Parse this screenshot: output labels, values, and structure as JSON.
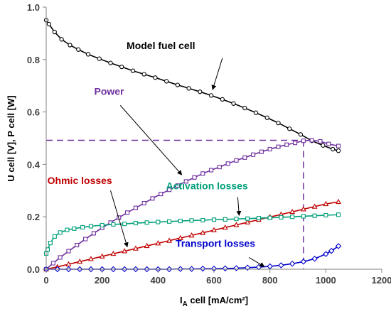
{
  "chart_data": {
    "type": "line",
    "xlabel_main": "I",
    "xlabel_sub": "A",
    "xlabel_rest": " cell [mA/cm²]",
    "ylabel": "U cell [V], P cell [W]",
    "xlim": [
      0,
      1200
    ],
    "ylim": [
      0,
      1.0
    ],
    "x_ticks": [
      "0",
      "200",
      "400",
      "600",
      "800",
      "1000",
      "1200"
    ],
    "y_ticks": [
      "0.0",
      "0.2",
      "0.4",
      "0.6",
      "0.8",
      "1.0"
    ],
    "grid": false,
    "series": [
      {
        "name": "Model fuel cell",
        "color": "#000000",
        "marker": "circle",
        "x": [
          0,
          10,
          30,
          55,
          85,
          115,
          150,
          190,
          230,
          270,
          310,
          350,
          390,
          430,
          470,
          510,
          550,
          590,
          630,
          670,
          710,
          750,
          790,
          830,
          870,
          910,
          950,
          990,
          1025,
          1045
        ],
        "y": [
          0.95,
          0.935,
          0.905,
          0.877,
          0.855,
          0.838,
          0.82,
          0.803,
          0.787,
          0.772,
          0.757,
          0.744,
          0.731,
          0.717,
          0.703,
          0.69,
          0.677,
          0.663,
          0.648,
          0.632,
          0.615,
          0.597,
          0.578,
          0.558,
          0.536,
          0.514,
          0.49,
          0.472,
          0.458,
          0.452
        ]
      },
      {
        "name": "Power",
        "color": "#7030A0",
        "marker": "square",
        "x": [
          0,
          25,
          50,
          80,
          110,
          140,
          170,
          200,
          230,
          260,
          290,
          320,
          350,
          380,
          410,
          440,
          470,
          500,
          530,
          560,
          590,
          620,
          650,
          680,
          710,
          740,
          770,
          800,
          830,
          860,
          890,
          920,
          950,
          980,
          1010,
          1045
        ],
        "y": [
          0.0,
          0.023,
          0.045,
          0.069,
          0.092,
          0.115,
          0.137,
          0.158,
          0.178,
          0.197,
          0.216,
          0.234,
          0.252,
          0.27,
          0.287,
          0.303,
          0.319,
          0.335,
          0.35,
          0.365,
          0.378,
          0.39,
          0.403,
          0.415,
          0.426,
          0.437,
          0.448,
          0.458,
          0.467,
          0.475,
          0.482,
          0.49,
          0.492,
          0.488,
          0.478,
          0.47
        ]
      },
      {
        "name": "Ohmic losses",
        "color": "#C00000",
        "marker": "triangle",
        "x": [
          0,
          40,
          80,
          120,
          160,
          200,
          240,
          280,
          320,
          360,
          400,
          440,
          480,
          520,
          560,
          600,
          640,
          680,
          720,
          760,
          800,
          840,
          880,
          920,
          960,
          1000,
          1045
        ],
        "y": [
          0.0,
          0.009,
          0.019,
          0.029,
          0.039,
          0.049,
          0.059,
          0.069,
          0.079,
          0.089,
          0.099,
          0.109,
          0.119,
          0.129,
          0.139,
          0.149,
          0.159,
          0.169,
          0.179,
          0.189,
          0.199,
          0.209,
          0.219,
          0.229,
          0.239,
          0.249,
          0.257
        ]
      },
      {
        "name": "Activation losses",
        "color": "#00A07A",
        "marker": "square",
        "x": [
          0,
          5,
          15,
          30,
          50,
          75,
          100,
          130,
          160,
          200,
          240,
          280,
          320,
          360,
          400,
          440,
          480,
          520,
          560,
          600,
          640,
          680,
          720,
          760,
          800,
          840,
          880,
          920,
          960,
          1000,
          1045
        ],
        "y": [
          0.06,
          0.075,
          0.1,
          0.125,
          0.14,
          0.15,
          0.155,
          0.16,
          0.164,
          0.168,
          0.171,
          0.173,
          0.176,
          0.178,
          0.18,
          0.182,
          0.184,
          0.186,
          0.187,
          0.189,
          0.19,
          0.192,
          0.193,
          0.195,
          0.196,
          0.198,
          0.2,
          0.202,
          0.204,
          0.206,
          0.208
        ]
      },
      {
        "name": "Transport losses",
        "color": "#0000CC",
        "marker": "diamond",
        "x": [
          0,
          40,
          80,
          120,
          160,
          200,
          240,
          280,
          320,
          360,
          400,
          440,
          480,
          520,
          560,
          600,
          640,
          680,
          720,
          760,
          800,
          840,
          880,
          920,
          960,
          1000,
          1020,
          1045
        ],
        "y": [
          0.0,
          0.0,
          0.0,
          0.0,
          0.0,
          0.0,
          0.0,
          0.0,
          0.0,
          0.0,
          0.0,
          0.0,
          0.001,
          0.001,
          0.002,
          0.002,
          0.003,
          0.004,
          0.006,
          0.008,
          0.011,
          0.015,
          0.021,
          0.029,
          0.04,
          0.058,
          0.07,
          0.088
        ]
      }
    ],
    "reference_lines": {
      "color": "#7030A0",
      "horizontal_y": 0.492,
      "vertical_x": 920
    },
    "annotations": [
      {
        "text": "Model fuel cell",
        "color": "#000000",
        "text_x": 410,
        "text_y": 0.84,
        "arrow_from": [
          630,
          0.805
        ],
        "arrow_to": [
          595,
          0.685
        ]
      },
      {
        "text": "Power",
        "color": "#7030A0",
        "text_x": 225,
        "text_y": 0.665,
        "arrow_from": [
          265,
          0.625
        ],
        "arrow_to": [
          485,
          0.36
        ]
      },
      {
        "text": "Ohmic losses",
        "color": "#C00000",
        "text_x": 120,
        "text_y": 0.325,
        "arrow_from": [
          230,
          0.3
        ],
        "arrow_to": [
          290,
          0.085
        ]
      },
      {
        "text": "Activation losses",
        "color": "#00A07A",
        "text_x": 575,
        "text_y": 0.305,
        "arrow_from": [
          685,
          0.275
        ],
        "arrow_to": [
          690,
          0.205
        ]
      },
      {
        "text": "Transport losses",
        "color": "#0000CC",
        "text_x": 605,
        "text_y": 0.085,
        "arrow_from": [
          725,
          0.045
        ],
        "arrow_to": [
          780,
          0.01
        ]
      }
    ]
  }
}
